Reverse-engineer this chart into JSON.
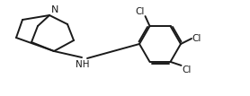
{
  "background_color": "#ffffff",
  "line_color": "#1a1a1a",
  "line_width": 1.4,
  "font_size_label": 7.5,
  "figsize": [
    2.78,
    1.07
  ],
  "dpi": 100,
  "xlim": [
    0,
    27.8
  ],
  "ylim": [
    0,
    10.7
  ]
}
